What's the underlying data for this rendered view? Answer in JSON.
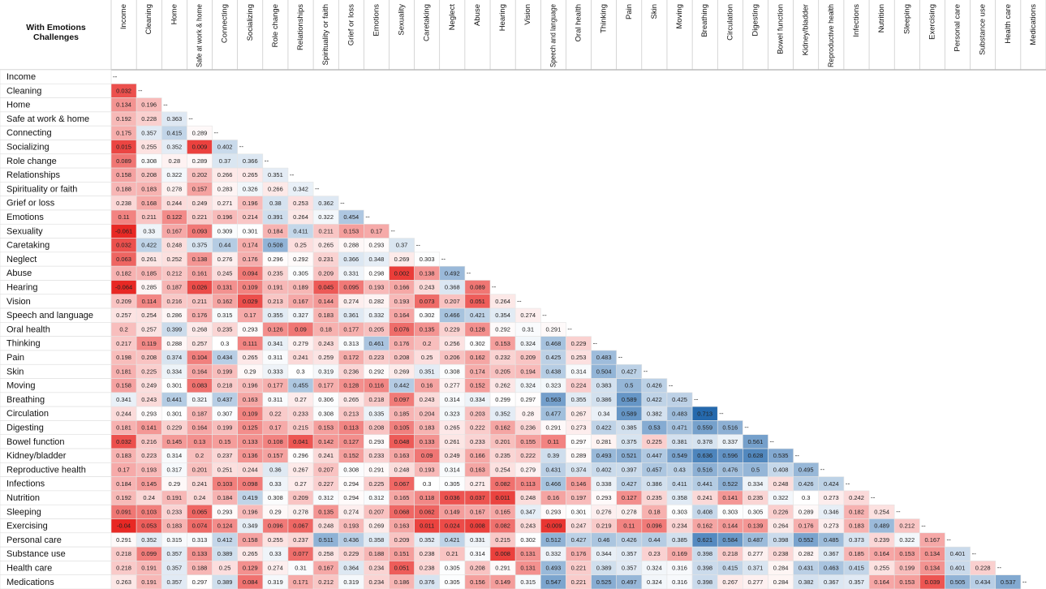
{
  "corner": "With Emotions Challenges",
  "labels": [
    "Income",
    "Cleaning",
    "Home",
    "Safe at work & home",
    "Connecting",
    "Socializing",
    "Role change",
    "Relationships",
    "Spirituality or faith",
    "Grief or loss",
    "Emotions",
    "Sexuality",
    "Caretaking",
    "Neglect",
    "Abuse",
    "Hearing",
    "Vision",
    "Speech and language",
    "Oral health",
    "Thinking",
    "Pain",
    "Skin",
    "Moving",
    "Breathing",
    "Circulation",
    "Digesting",
    "Bowel function",
    "Kidney/bladder",
    "Reproductive health",
    "Infections",
    "Nutrition",
    "Sleeping",
    "Exercising",
    "Personal care",
    "Substance use",
    "Health care",
    "Medications"
  ],
  "diagonal": "--",
  "rows": [
    [],
    [
      0.032
    ],
    [
      0.134,
      0.196
    ],
    [
      0.192,
      0.228,
      0.363
    ],
    [
      0.175,
      0.357,
      0.415,
      0.289
    ],
    [
      0.015,
      0.255,
      0.352,
      0.009,
      0.402
    ],
    [
      0.089,
      0.308,
      0.28,
      0.289,
      0.37,
      0.366
    ],
    [
      0.158,
      0.208,
      0.322,
      0.202,
      0.266,
      0.265,
      0.351
    ],
    [
      0.188,
      0.183,
      0.278,
      0.157,
      0.283,
      0.326,
      0.266,
      0.342
    ],
    [
      0.238,
      0.168,
      0.244,
      0.249,
      0.271,
      0.196,
      0.38,
      0.253,
      0.362
    ],
    [
      0.11,
      0.211,
      0.122,
      0.221,
      0.196,
      0.214,
      0.391,
      0.264,
      0.322,
      0.454
    ],
    [
      -0.061,
      0.33,
      0.167,
      0.093,
      0.309,
      0.301,
      0.184,
      0.411,
      0.211,
      0.153,
      0.17
    ],
    [
      0.032,
      0.422,
      0.248,
      0.375,
      0.44,
      0.174,
      0.508,
      0.25,
      0.265,
      0.288,
      0.293,
      0.37
    ],
    [
      0.063,
      0.261,
      0.252,
      0.138,
      0.276,
      0.176,
      0.296,
      0.292,
      0.231,
      0.366,
      0.348,
      0.269,
      0.303
    ],
    [
      0.182,
      0.185,
      0.212,
      0.161,
      0.245,
      0.094,
      0.235,
      0.305,
      0.209,
      0.331,
      0.298,
      0.002,
      0.138,
      0.492
    ],
    [
      -0.064,
      0.285,
      0.187,
      0.026,
      0.131,
      0.109,
      0.191,
      0.189,
      0.045,
      0.095,
      0.193,
      0.166,
      0.243,
      0.368,
      0.089
    ],
    [
      0.209,
      0.114,
      0.216,
      0.211,
      0.162,
      0.029,
      0.213,
      0.167,
      0.144,
      0.274,
      0.282,
      0.193,
      0.073,
      0.207,
      0.051,
      0.264
    ],
    [
      0.257,
      0.254,
      0.286,
      0.176,
      0.315,
      0.17,
      0.355,
      0.327,
      0.183,
      0.361,
      0.332,
      0.164,
      0.302,
      0.466,
      0.421,
      0.354,
      0.274
    ],
    [
      0.2,
      0.257,
      0.399,
      0.268,
      0.235,
      0.293,
      0.126,
      0.09,
      0.18,
      0.177,
      0.205,
      0.076,
      0.135,
      0.229,
      0.128,
      0.292,
      0.31,
      0.291
    ],
    [
      0.217,
      0.119,
      0.288,
      0.257,
      0.3,
      0.111,
      0.341,
      0.279,
      0.243,
      0.313,
      0.461,
      0.176,
      0.2,
      0.256,
      0.302,
      0.153,
      0.324,
      0.468,
      0.229
    ],
    [
      0.198,
      0.208,
      0.374,
      0.104,
      0.434,
      0.265,
      0.311,
      0.241,
      0.259,
      0.172,
      0.223,
      0.208,
      0.25,
      0.206,
      0.162,
      0.232,
      0.209,
      0.425,
      0.253,
      0.483
    ],
    [
      0.181,
      0.225,
      0.334,
      0.164,
      0.199,
      0.29,
      0.333,
      0.3,
      0.319,
      0.236,
      0.292,
      0.269,
      0.351,
      0.308,
      0.174,
      0.205,
      0.194,
      0.438,
      0.314,
      0.504,
      0.427
    ],
    [
      0.158,
      0.249,
      0.301,
      0.083,
      0.218,
      0.196,
      0.177,
      0.455,
      0.177,
      0.128,
      0.116,
      0.442,
      0.16,
      0.277,
      0.152,
      0.262,
      0.324,
      0.323,
      0.224,
      0.383,
      0.5,
      0.426
    ],
    [
      0.341,
      0.243,
      0.441,
      0.321,
      0.437,
      0.163,
      0.311,
      0.27,
      0.306,
      0.265,
      0.218,
      0.097,
      0.243,
      0.314,
      0.334,
      0.299,
      0.297,
      0.563,
      0.355,
      0.386,
      0.589,
      0.422,
      0.425
    ],
    [
      0.244,
      0.293,
      0.301,
      0.187,
      0.307,
      0.109,
      0.22,
      0.233,
      0.308,
      0.213,
      0.335,
      0.185,
      0.204,
      0.323,
      0.203,
      0.352,
      0.28,
      0.477,
      0.267,
      0.34,
      0.589,
      0.382,
      0.483,
      0.713
    ],
    [
      0.181,
      0.141,
      0.229,
      0.164,
      0.199,
      0.125,
      0.17,
      0.215,
      0.153,
      0.113,
      0.208,
      0.105,
      0.183,
      0.265,
      0.222,
      0.162,
      0.236,
      0.291,
      0.273,
      0.422,
      0.385,
      0.53,
      0.471,
      0.559,
      0.516
    ],
    [
      0.032,
      0.216,
      0.145,
      0.13,
      0.15,
      0.133,
      0.108,
      0.041,
      0.142,
      0.127,
      0.293,
      0.048,
      0.133,
      0.261,
      0.233,
      0.201,
      0.155,
      0.11,
      0.297,
      0.281,
      0.375,
      0.225,
      0.381,
      0.378,
      0.337,
      0.561
    ],
    [
      0.183,
      0.223,
      0.314,
      0.2,
      0.237,
      0.136,
      0.157,
      0.296,
      0.241,
      0.152,
      0.233,
      0.163,
      0.09,
      0.249,
      0.166,
      0.235,
      0.222,
      0.39,
      0.289,
      0.493,
      0.521,
      0.447,
      0.549,
      0.636,
      0.596,
      0.628,
      0.535
    ],
    [
      0.17,
      0.193,
      0.317,
      0.201,
      0.251,
      0.244,
      0.36,
      0.267,
      0.207,
      0.308,
      0.291,
      0.248,
      0.193,
      0.314,
      0.163,
      0.254,
      0.279,
      0.431,
      0.374,
      0.402,
      0.397,
      0.457,
      0.43,
      0.516,
      0.476,
      0.5,
      0.408,
      0.495
    ],
    [
      0.184,
      0.145,
      0.29,
      0.241,
      0.103,
      0.098,
      0.33,
      0.27,
      0.227,
      0.294,
      0.225,
      0.067,
      0.3,
      0.305,
      0.271,
      0.082,
      0.113,
      0.466,
      0.146,
      0.338,
      0.427,
      0.386,
      0.411,
      0.441,
      0.522,
      0.334,
      0.248,
      0.426,
      0.424
    ],
    [
      0.192,
      0.24,
      0.191,
      0.24,
      0.184,
      0.419,
      0.308,
      0.209,
      0.312,
      0.294,
      0.312,
      0.165,
      0.118,
      0.036,
      0.037,
      0.011,
      0.248,
      0.16,
      0.197,
      0.293,
      0.127,
      0.235,
      0.358,
      0.241,
      0.141,
      0.235,
      0.322,
      0.3,
      0.273,
      0.242
    ],
    [
      0.091,
      0.103,
      0.233,
      0.065,
      0.293,
      0.196,
      0.29,
      0.278,
      0.135,
      0.274,
      0.207,
      0.068,
      0.062,
      0.149,
      0.167,
      0.165,
      0.347,
      0.293,
      0.301,
      0.276,
      0.278,
      0.18,
      0.303,
      0.408,
      0.303,
      0.305,
      0.226,
      0.289,
      0.346,
      0.182,
      0.254
    ],
    [
      -0.04,
      0.053,
      0.183,
      0.074,
      0.124,
      0.349,
      0.096,
      0.067,
      0.248,
      0.193,
      0.269,
      0.163,
      0.011,
      0.024,
      0.008,
      0.082,
      0.243,
      -0.009,
      0.247,
      0.219,
      0.11,
      0.096,
      0.234,
      0.162,
      0.144,
      0.139,
      0.264,
      0.176,
      0.273,
      0.183,
      0.489,
      0.212
    ],
    [
      0.291,
      0.352,
      0.315,
      0.313,
      0.412,
      0.158,
      0.255,
      0.237,
      0.511,
      0.436,
      0.358,
      0.209,
      0.352,
      0.421,
      0.331,
      0.215,
      0.302,
      0.512,
      0.427,
      0.46,
      0.426,
      0.44,
      0.385,
      0.621,
      0.584,
      0.487,
      0.398,
      0.552,
      0.485,
      0.373,
      0.239,
      0.322,
      0.167
    ],
    [
      0.218,
      0.099,
      0.357,
      0.133,
      0.389,
      0.265,
      0.33,
      0.077,
      0.258,
      0.229,
      0.188,
      0.151,
      0.238,
      0.21,
      0.314,
      0.008,
      0.131,
      0.332,
      0.176,
      0.344,
      0.357,
      0.23,
      0.169,
      0.398,
      0.218,
      0.277,
      0.238,
      0.282,
      0.367,
      0.185,
      0.164,
      0.153,
      0.134,
      0.401
    ],
    [
      0.218,
      0.191,
      0.357,
      0.188,
      0.25,
      0.129,
      0.274,
      0.31,
      0.167,
      0.364,
      0.234,
      0.051,
      0.238,
      0.305,
      0.208,
      0.291,
      0.131,
      0.493,
      0.221,
      0.389,
      0.357,
      0.324,
      0.316,
      0.398,
      0.415,
      0.371,
      0.284,
      0.431,
      0.463,
      0.415,
      0.255,
      0.199,
      0.134,
      0.401,
      0.228
    ],
    [
      0.263,
      0.191,
      0.357,
      0.297,
      0.389,
      0.084,
      0.319,
      0.171,
      0.212,
      0.319,
      0.234,
      0.186,
      0.376,
      0.305,
      0.156,
      0.149,
      0.315,
      0.547,
      0.221,
      0.525,
      0.497,
      0.324,
      0.316,
      0.398,
      0.267,
      0.277,
      0.284,
      0.382,
      0.367,
      0.357,
      0.164,
      0.153,
      0.039,
      0.505,
      0.434,
      0.537
    ]
  ]
}
